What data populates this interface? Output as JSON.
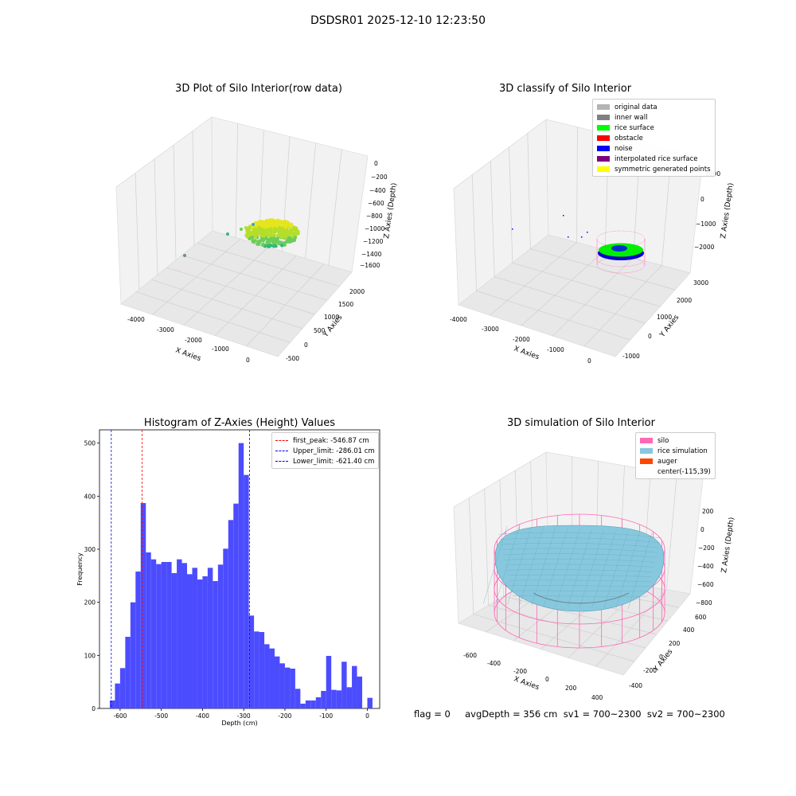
{
  "suptitle": "DSDSR01 2025-12-10 12:23:50",
  "status_text": "flag = 0     avgDepth = 356 cm  sv1 = 700~2300  sv2 = 700~2300",
  "colors": {
    "hist_bar": "#4c4cff",
    "peak_line": "#ff0000",
    "limit_line": "#0000ff",
    "silo": "#ff69b4",
    "rice_sim": "#87c8de",
    "auger": "#ff4500",
    "original": "#b4b4b4",
    "inner_wall": "#808080",
    "rice_surface": "#00ff00",
    "obstacle": "#ff0000",
    "noise": "#0000ff",
    "interp": "#800080",
    "symmetric": "#ffff00"
  },
  "chart_data": [
    {
      "type": "scatter",
      "title": "3D Plot of Silo Interior(row data)",
      "xlabel": "X Axies",
      "ylabel": "Y Axies",
      "zlabel": "Z Axies (Depth)",
      "x_ticks": [
        "-4000",
        "-3000",
        "-2000",
        "-1000",
        "0"
      ],
      "y_ticks": [
        "-500",
        "0",
        "500",
        "1000",
        "1500",
        "2000"
      ],
      "z_ticks": [
        "0",
        "−200",
        "−400",
        "−600",
        "−800",
        "−1000",
        "−1200",
        "−1400",
        "−1600"
      ]
    },
    {
      "type": "scatter",
      "title": "3D classify of Silo Interior",
      "xlabel": "X Axies",
      "ylabel": "Y Axies",
      "zlabel": "Z Axies (Depth)",
      "x_ticks": [
        "-4000",
        "-3000",
        "-2000",
        "-1000",
        "0"
      ],
      "y_ticks": [
        "-1000",
        "0",
        "1000",
        "2000",
        "3000"
      ],
      "z_ticks": [
        "1000",
        "0",
        "−1000",
        "−2000"
      ],
      "legend": [
        {
          "label": "original data",
          "color": "#b4b4b4"
        },
        {
          "label": "inner wall",
          "color": "#808080"
        },
        {
          "label": "rice surface",
          "color": "#00ff00"
        },
        {
          "label": "obstacle",
          "color": "#ff0000"
        },
        {
          "label": "noise",
          "color": "#0000ff"
        },
        {
          "label": "interpolated rice surface",
          "color": "#800080"
        },
        {
          "label": "symmetric generated points",
          "color": "#ffff00"
        }
      ]
    },
    {
      "type": "bar",
      "title": "Histogram of Z-Axies (Height) Values",
      "xlabel": "Depth (cm)",
      "ylabel": "Frequency",
      "xlim": [
        -650,
        30
      ],
      "ylim": [
        0,
        525
      ],
      "x_ticks": [
        -600,
        -500,
        -400,
        -300,
        -200,
        -100,
        0
      ],
      "y_ticks": [
        0,
        100,
        200,
        300,
        400,
        500
      ],
      "bin_start": -625,
      "bin_width": 12.5,
      "values": [
        15,
        47,
        76,
        135,
        200,
        258,
        387,
        294,
        281,
        272,
        276,
        276,
        255,
        281,
        274,
        253,
        265,
        243,
        249,
        265,
        240,
        271,
        301,
        355,
        386,
        500,
        440,
        175,
        145,
        144,
        121,
        113,
        98,
        85,
        77,
        75,
        37,
        9,
        15,
        15,
        21,
        33,
        99,
        35,
        34,
        88,
        40,
        80,
        60,
        0,
        20
      ],
      "vlines": [
        {
          "label": "first_peak: -546.87 cm",
          "x": -546.87,
          "color": "#ff0000"
        },
        {
          "label": "Upper_limit: -286.01 cm",
          "x": -286.01,
          "color": "#0000ff"
        },
        {
          "label": "Lower_limit: -621.40 cm",
          "x": -621.4,
          "color": "#0000ff"
        }
      ]
    },
    {
      "type": "area",
      "title": "3D simulation of Silo Interior",
      "xlabel": "X Axies",
      "ylabel": "Y Axies",
      "zlabel": "Z Axies (Depth)",
      "x_ticks": [
        "-600",
        "-400",
        "-200",
        "0",
        "200",
        "400"
      ],
      "y_ticks": [
        "-400",
        "-200",
        "0",
        "200",
        "400",
        "600"
      ],
      "z_ticks": [
        "200",
        "0",
        "−200",
        "−400",
        "−600",
        "−800"
      ],
      "legend": [
        {
          "label": "silo",
          "color": "#ff69b4"
        },
        {
          "label": "rice simulation",
          "color": "#87c8de"
        },
        {
          "label": "auger",
          "color": "#ff4500"
        },
        {
          "label": "center(-115,39)",
          "color": ""
        }
      ]
    }
  ]
}
